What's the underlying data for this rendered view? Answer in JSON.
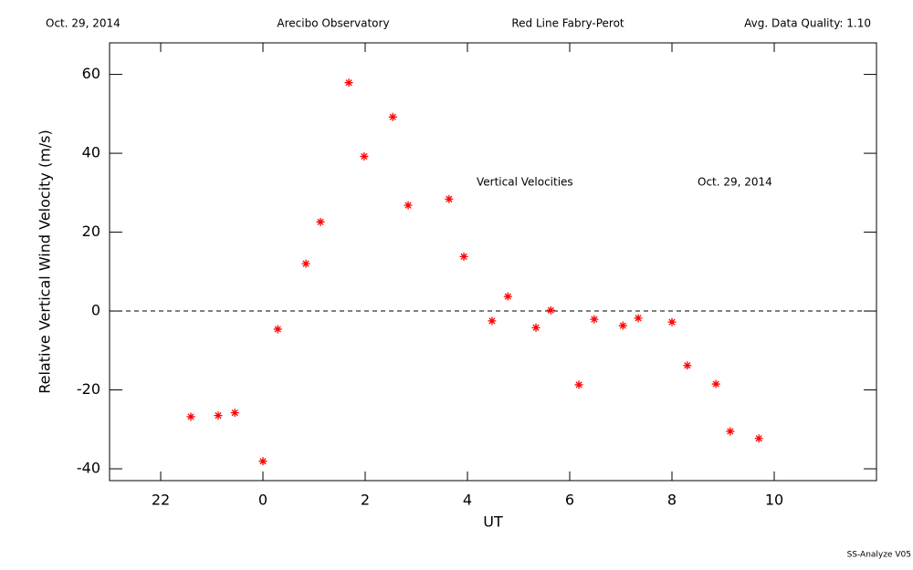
{
  "chart_data": {
    "type": "scatter",
    "header": [
      "Oct. 29, 2014",
      "Arecibo Observatory",
      "Red Line Fabry-Perot",
      "Avg. Data Quality: 1.10"
    ],
    "annotations": [
      "Vertical Velocities",
      "Oct. 29, 2014"
    ],
    "footer": "SS-Analyze V05",
    "x_label": "UT",
    "y_label": "Relative Vertical Wind Velocity (m/s)",
    "xlim": [
      -3,
      12
    ],
    "ylim": [
      -43,
      68
    ],
    "xticks": [
      {
        "value": -2,
        "label": "22"
      },
      0,
      2,
      4,
      6,
      8,
      10
    ],
    "yticks": [
      -40,
      -20,
      0,
      20,
      40,
      60
    ],
    "hline": 0,
    "series": [
      {
        "color": "#ff0000",
        "x": [
          -1.41,
          -0.875,
          -0.55,
          0,
          0.29,
          0.84,
          1.125,
          1.68,
          1.98,
          2.54,
          2.84,
          3.64,
          3.93,
          4.48,
          4.79,
          5.34,
          5.63,
          6.18,
          6.48,
          7.04,
          7.34,
          8.0,
          8.3,
          8.86,
          9.14,
          9.7
        ],
        "values": [
          -26.8,
          -26.5,
          -25.8,
          -38.1,
          -4.6,
          12.0,
          22.6,
          57.9,
          39.2,
          49.2,
          26.8,
          28.4,
          13.8,
          -2.5,
          3.7,
          -4.2,
          0.2,
          -18.7,
          -2.1,
          -3.7,
          -1.8,
          -2.8,
          -13.8,
          -18.5,
          -30.5,
          -32.3
        ]
      }
    ]
  }
}
